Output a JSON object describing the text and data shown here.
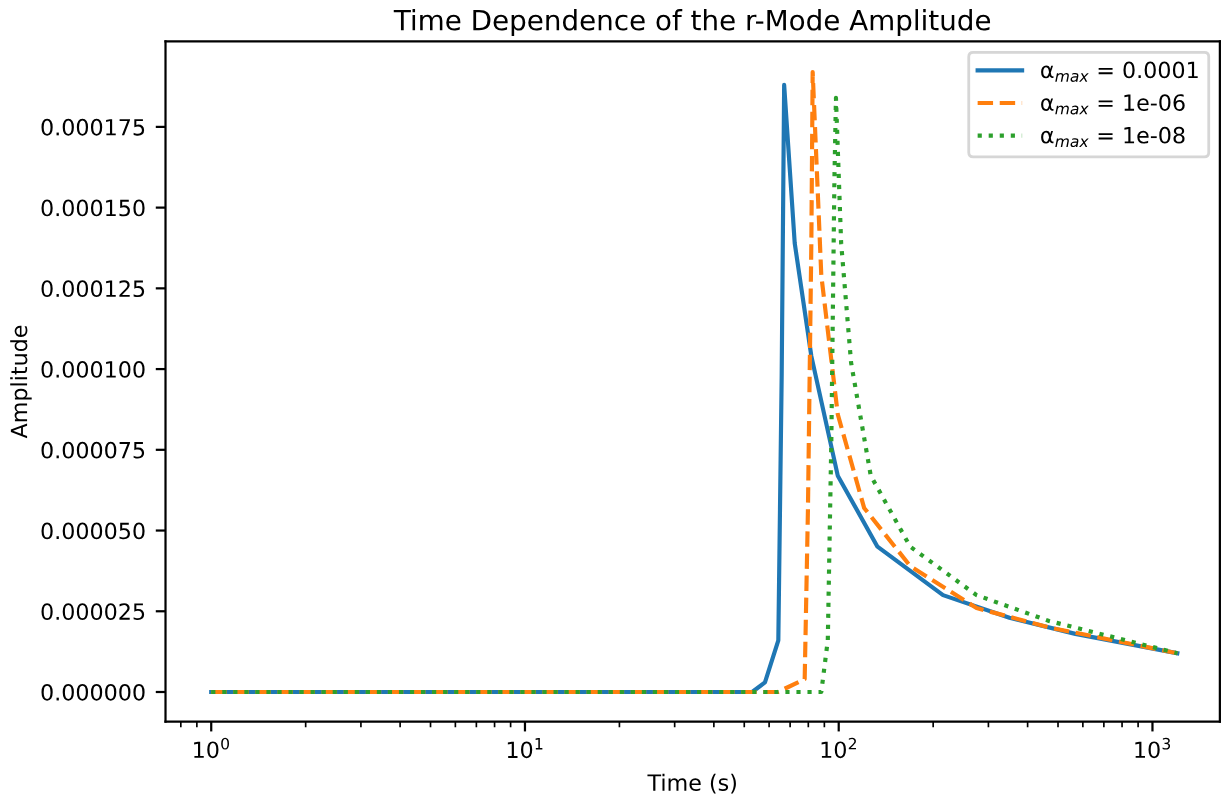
{
  "chart_data": {
    "type": "line",
    "title": "Time Dependence of the r-Mode Amplitude",
    "xlabel": "Time (s)",
    "ylabel": "Amplitude",
    "log": "x",
    "grid": false,
    "legend": "top right",
    "xlim": [
      0.715,
      1640
    ],
    "xticks": [
      {
        "value": 1,
        "label": "10$^{0}$"
      },
      {
        "value": 10,
        "label": "10$^{1}$"
      },
      {
        "value": 100,
        "label": "10$^{2}$"
      },
      {
        "value": 1000,
        "label": "10$^{3}$"
      }
    ],
    "ylim": [
      -9.2e-06,
      0.0002015
    ],
    "yticks": [
      {
        "value": 0,
        "label": "0.000000"
      },
      {
        "value": 2.5e-05,
        "label": "0.000025"
      },
      {
        "value": 5e-05,
        "label": "0.000050"
      },
      {
        "value": 7.5e-05,
        "label": "0.000075"
      },
      {
        "value": 0.0001,
        "label": "0.000100"
      },
      {
        "value": 0.000125,
        "label": "0.000125"
      },
      {
        "value": 0.00015,
        "label": "0.000150"
      },
      {
        "value": 0.000175,
        "label": "0.000175"
      }
    ],
    "series": [
      {
        "name": "α$_{max}$ = 0.0001",
        "color": "#1f77b4",
        "line_style": "solid",
        "x": [
          1,
          10,
          50,
          53,
          58.2,
          64.2,
          65.8,
          67,
          72.4,
          81.8,
          99.3,
          132.9,
          215,
          350,
          568,
          1200
        ],
        "values": [
          0,
          0,
          0,
          0,
          3e-06,
          1.6e-05,
          9.8e-05,
          0.000188,
          0.000139,
          0.000104,
          6.7e-05,
          4.5e-05,
          3e-05,
          2.3e-05,
          1.8e-05,
          1.2e-05
        ]
      },
      {
        "name": "α$_{max}$ = 1e-06",
        "color": "#ff7f0e",
        "line_style": "dashed",
        "x": [
          1,
          10,
          64,
          77.9,
          79.8,
          81.8,
          82.6,
          88,
          99.3,
          120.5,
          169,
          275,
          468,
          1200
        ],
        "values": [
          0,
          0,
          0,
          4e-06,
          5.7e-05,
          0.000139,
          0.000192,
          0.000129,
          8.6e-05,
          5.7e-05,
          3.9e-05,
          2.6e-05,
          2e-05,
          1.2e-05
        ]
      },
      {
        "name": "α$_{max}$ = 1e-08",
        "color": "#2ca02c",
        "line_style": "dotted",
        "x": [
          1,
          10,
          88,
          92.3,
          94.7,
          96.9,
          98,
          101.8,
          109.5,
          126.5,
          169,
          275,
          468,
          1200
        ],
        "values": [
          0,
          0,
          0,
          1.6e-05,
          7.7e-05,
          0.000159,
          0.000184,
          0.000139,
          0.000102,
          6.7e-05,
          4.5e-05,
          3e-05,
          2.2e-05,
          1.2e-05
        ]
      }
    ]
  }
}
